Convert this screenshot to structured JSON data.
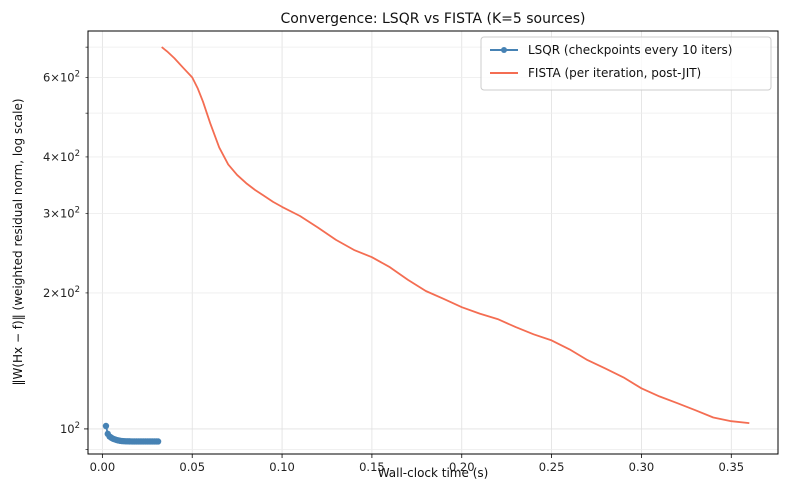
{
  "chart_data": {
    "type": "line",
    "title": "Convergence: LSQR vs FISTA (K=5 sources)",
    "xlabel": "Wall-clock time (s)",
    "ylabel": "‖W(Hx − f)‖  (weighted residual norm, log scale)",
    "xlim": [
      -0.008,
      0.376
    ],
    "ylim": [
      88,
      760
    ],
    "yscale": "log",
    "grid": true,
    "legend_position": "top-right",
    "x_ticks": [
      {
        "value": 0.0,
        "label": "0.00"
      },
      {
        "value": 0.05,
        "label": "0.05"
      },
      {
        "value": 0.1,
        "label": "0.10"
      },
      {
        "value": 0.15,
        "label": "0.15"
      },
      {
        "value": 0.2,
        "label": "0.20"
      },
      {
        "value": 0.25,
        "label": "0.25"
      },
      {
        "value": 0.3,
        "label": "0.30"
      },
      {
        "value": 0.35,
        "label": "0.35"
      }
    ],
    "y_major_ticks": [
      {
        "value": 100,
        "base": "10",
        "exp": "2"
      }
    ],
    "y_minor_ticks": [
      {
        "value": 200,
        "mant": "2",
        "base": "10",
        "exp": "2"
      },
      {
        "value": 300,
        "mant": "3",
        "base": "10",
        "exp": "2"
      },
      {
        "value": 400,
        "mant": "4",
        "base": "10",
        "exp": "2"
      },
      {
        "value": 600,
        "mant": "6",
        "base": "10",
        "exp": "2"
      }
    ],
    "y_minor_unlabeled": [
      90,
      500,
      700
    ],
    "series": [
      {
        "name": "LSQR (checkpoints every 10 iters)",
        "color": "#4682b4",
        "marker": "circle",
        "x": [
          0.002,
          0.003,
          0.004,
          0.005,
          0.006,
          0.007,
          0.008,
          0.009,
          0.01,
          0.011,
          0.012,
          0.013,
          0.014,
          0.015,
          0.016,
          0.017,
          0.018,
          0.019,
          0.02,
          0.021,
          0.022,
          0.023,
          0.024,
          0.025,
          0.026,
          0.027,
          0.028,
          0.029,
          0.03,
          0.031
        ],
        "y": [
          101.5,
          97.5,
          96.2,
          95.6,
          95.1,
          94.8,
          94.5,
          94.3,
          94.1,
          94.0,
          93.95,
          93.9,
          93.87,
          93.85,
          93.83,
          93.82,
          93.81,
          93.8,
          93.8,
          93.8,
          93.8,
          93.8,
          93.8,
          93.8,
          93.8,
          93.8,
          93.8,
          93.8,
          93.8,
          93.8
        ]
      },
      {
        "name": "FISTA (per iteration, post-JIT)",
        "color": "#f46d52",
        "marker": "none",
        "x": [
          0.033,
          0.036,
          0.04,
          0.045,
          0.05,
          0.053,
          0.056,
          0.06,
          0.065,
          0.07,
          0.075,
          0.08,
          0.085,
          0.09,
          0.095,
          0.1,
          0.11,
          0.12,
          0.13,
          0.14,
          0.15,
          0.16,
          0.17,
          0.18,
          0.19,
          0.2,
          0.21,
          0.22,
          0.23,
          0.24,
          0.25,
          0.26,
          0.27,
          0.28,
          0.29,
          0.3,
          0.31,
          0.32,
          0.33,
          0.34,
          0.35,
          0.36
        ],
        "y": [
          700,
          685,
          662,
          630,
          600,
          568,
          530,
          475,
          420,
          385,
          365,
          350,
          338,
          328,
          318,
          310,
          296,
          279,
          262,
          249,
          240,
          228,
          214,
          202,
          194,
          186,
          180,
          175,
          168,
          162,
          157,
          150,
          142,
          136,
          130,
          123,
          118,
          114,
          110,
          106,
          104,
          103
        ]
      }
    ]
  }
}
